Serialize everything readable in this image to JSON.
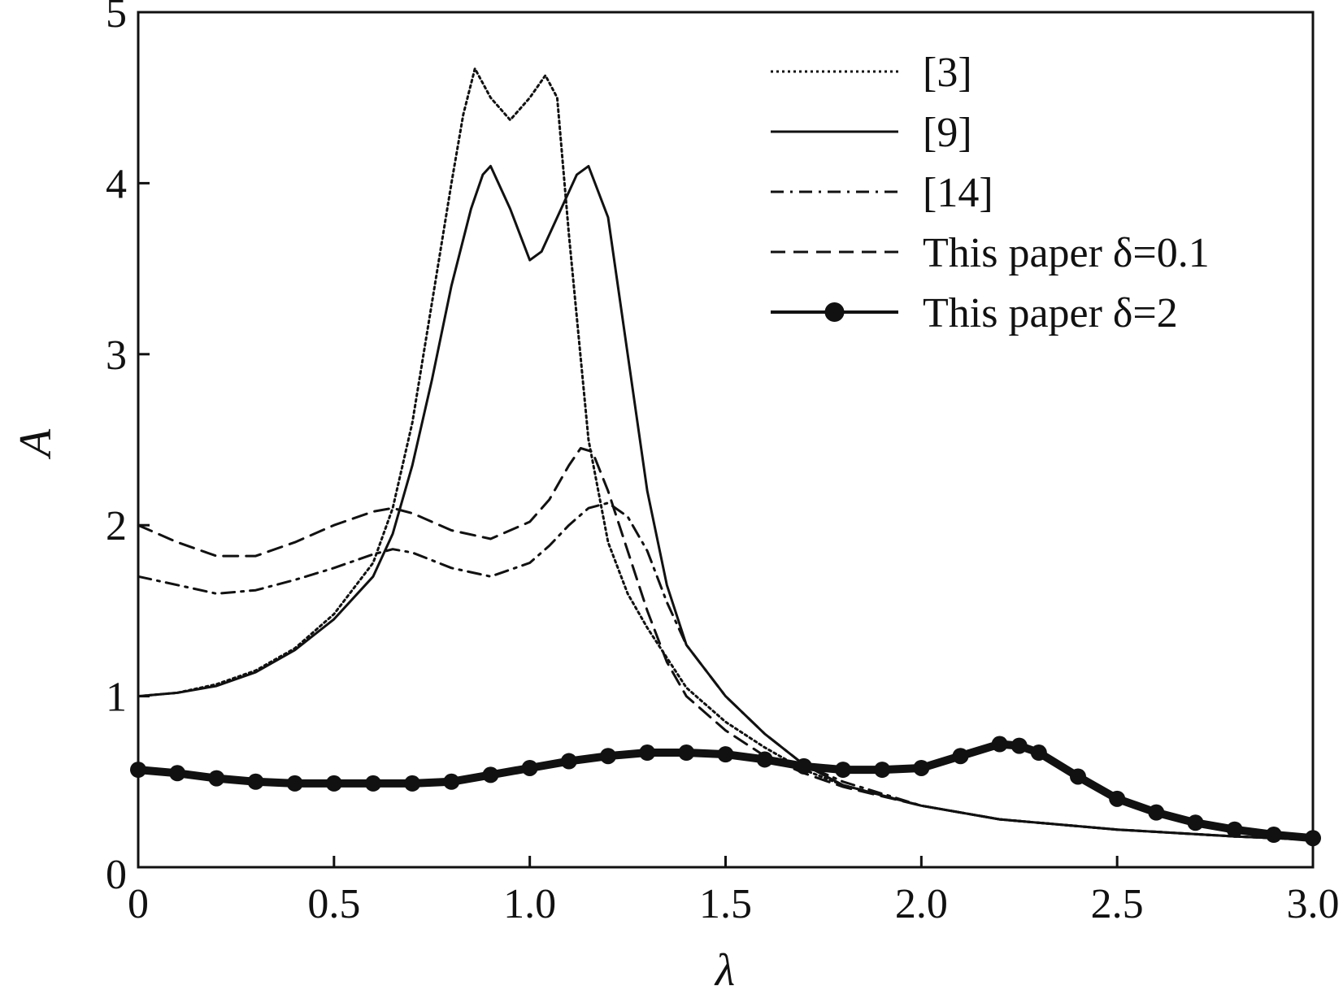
{
  "chart_data": {
    "type": "line",
    "xlabel": "λ",
    "ylabel": "A",
    "xlim": [
      0,
      3.0
    ],
    "ylim": [
      0,
      5
    ],
    "x_ticks": [
      "0",
      "0.5",
      "1.0",
      "1.5",
      "2.0",
      "2.5",
      "3.0"
    ],
    "y_ticks": [
      "0",
      "1",
      "2",
      "3",
      "4",
      "5"
    ],
    "grid": false,
    "legend_position": "top-right",
    "series": [
      {
        "name": "[3]",
        "style": "dotted",
        "x": [
          0,
          0.1,
          0.2,
          0.3,
          0.4,
          0.5,
          0.6,
          0.65,
          0.7,
          0.75,
          0.8,
          0.83,
          0.86,
          0.9,
          0.95,
          1.0,
          1.04,
          1.07,
          1.1,
          1.15,
          1.2,
          1.25,
          1.3,
          1.4,
          1.5,
          1.6,
          1.7,
          1.8,
          2.0,
          2.2,
          2.5,
          2.8,
          3.0
        ],
        "y": [
          1.0,
          1.02,
          1.07,
          1.15,
          1.28,
          1.48,
          1.78,
          2.1,
          2.6,
          3.3,
          4.0,
          4.4,
          4.67,
          4.5,
          4.37,
          4.5,
          4.63,
          4.5,
          3.7,
          2.5,
          1.9,
          1.6,
          1.4,
          1.05,
          0.85,
          0.7,
          0.57,
          0.48,
          0.36,
          0.28,
          0.22,
          0.18,
          0.16
        ]
      },
      {
        "name": "[9]",
        "style": "solid",
        "x": [
          0,
          0.1,
          0.2,
          0.3,
          0.4,
          0.5,
          0.6,
          0.65,
          0.7,
          0.75,
          0.8,
          0.85,
          0.88,
          0.9,
          0.95,
          1.0,
          1.03,
          1.07,
          1.12,
          1.15,
          1.2,
          1.25,
          1.3,
          1.35,
          1.4,
          1.5,
          1.6,
          1.7,
          1.8,
          2.0,
          2.2,
          2.5,
          2.8,
          3.0
        ],
        "y": [
          1.0,
          1.02,
          1.06,
          1.14,
          1.27,
          1.45,
          1.7,
          1.95,
          2.35,
          2.85,
          3.4,
          3.85,
          4.05,
          4.1,
          3.85,
          3.55,
          3.6,
          3.8,
          4.05,
          4.1,
          3.8,
          3.0,
          2.2,
          1.65,
          1.3,
          1.0,
          0.78,
          0.6,
          0.48,
          0.36,
          0.28,
          0.22,
          0.18,
          0.16
        ]
      },
      {
        "name": "[14]",
        "style": "dashdot",
        "x": [
          0,
          0.1,
          0.2,
          0.3,
          0.4,
          0.5,
          0.6,
          0.65,
          0.7,
          0.8,
          0.9,
          1.0,
          1.05,
          1.1,
          1.15,
          1.2,
          1.25,
          1.3,
          1.35,
          1.4,
          1.5,
          1.6,
          1.7,
          1.8,
          2.0,
          2.2,
          2.5,
          2.8,
          3.0
        ],
        "y": [
          1.7,
          1.65,
          1.6,
          1.62,
          1.68,
          1.75,
          1.83,
          1.86,
          1.84,
          1.75,
          1.7,
          1.78,
          1.88,
          2.0,
          2.1,
          2.13,
          2.05,
          1.85,
          1.55,
          1.3,
          1.0,
          0.78,
          0.6,
          0.5,
          0.36,
          0.28,
          0.22,
          0.18,
          0.16
        ]
      },
      {
        "name": "This paper δ=0.1",
        "style": "dashed",
        "x": [
          0,
          0.1,
          0.2,
          0.3,
          0.4,
          0.5,
          0.6,
          0.65,
          0.7,
          0.8,
          0.9,
          1.0,
          1.05,
          1.1,
          1.13,
          1.16,
          1.2,
          1.25,
          1.3,
          1.35,
          1.4,
          1.5,
          1.6,
          1.7,
          1.8,
          2.0,
          2.2,
          2.5,
          2.8,
          3.0
        ],
        "y": [
          2.0,
          1.9,
          1.82,
          1.82,
          1.9,
          2.0,
          2.08,
          2.1,
          2.07,
          1.97,
          1.92,
          2.02,
          2.15,
          2.35,
          2.45,
          2.43,
          2.2,
          1.85,
          1.5,
          1.2,
          1.0,
          0.8,
          0.65,
          0.55,
          0.47,
          0.36,
          0.28,
          0.22,
          0.18,
          0.16
        ]
      },
      {
        "name": "This paper δ=2",
        "style": "solid-dots",
        "x": [
          0,
          0.1,
          0.2,
          0.3,
          0.4,
          0.5,
          0.6,
          0.7,
          0.8,
          0.9,
          1.0,
          1.1,
          1.2,
          1.3,
          1.4,
          1.5,
          1.6,
          1.7,
          1.8,
          1.9,
          2.0,
          2.1,
          2.2,
          2.25,
          2.3,
          2.4,
          2.5,
          2.6,
          2.7,
          2.8,
          2.9,
          3.0
        ],
        "y": [
          0.57,
          0.55,
          0.52,
          0.5,
          0.49,
          0.49,
          0.49,
          0.49,
          0.5,
          0.54,
          0.58,
          0.62,
          0.65,
          0.67,
          0.67,
          0.66,
          0.63,
          0.59,
          0.57,
          0.57,
          0.58,
          0.65,
          0.72,
          0.71,
          0.67,
          0.53,
          0.4,
          0.32,
          0.26,
          0.22,
          0.19,
          0.17
        ]
      }
    ]
  }
}
